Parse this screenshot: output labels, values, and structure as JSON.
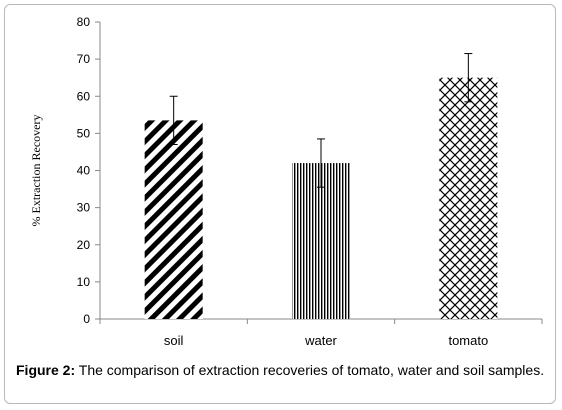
{
  "chart_data": {
    "type": "bar",
    "categories": [
      "soil",
      "water",
      "tomato"
    ],
    "values": [
      53.5,
      42.0,
      65.0
    ],
    "errors": [
      6.5,
      6.5,
      6.5
    ],
    "ylabel": "% Extraction Recovery",
    "xlabel": "",
    "ylim": [
      0,
      80
    ],
    "yticks": [
      0,
      10,
      20,
      30,
      40,
      50,
      60,
      70,
      80
    ],
    "grid": false,
    "patterns": [
      "diagonal-stripes",
      "vertical-lines",
      "diagonal-crosshatch"
    ]
  },
  "caption": {
    "label": "Figure 2:",
    "text": " The comparison of extraction recoveries of tomato, water and soil samples."
  }
}
